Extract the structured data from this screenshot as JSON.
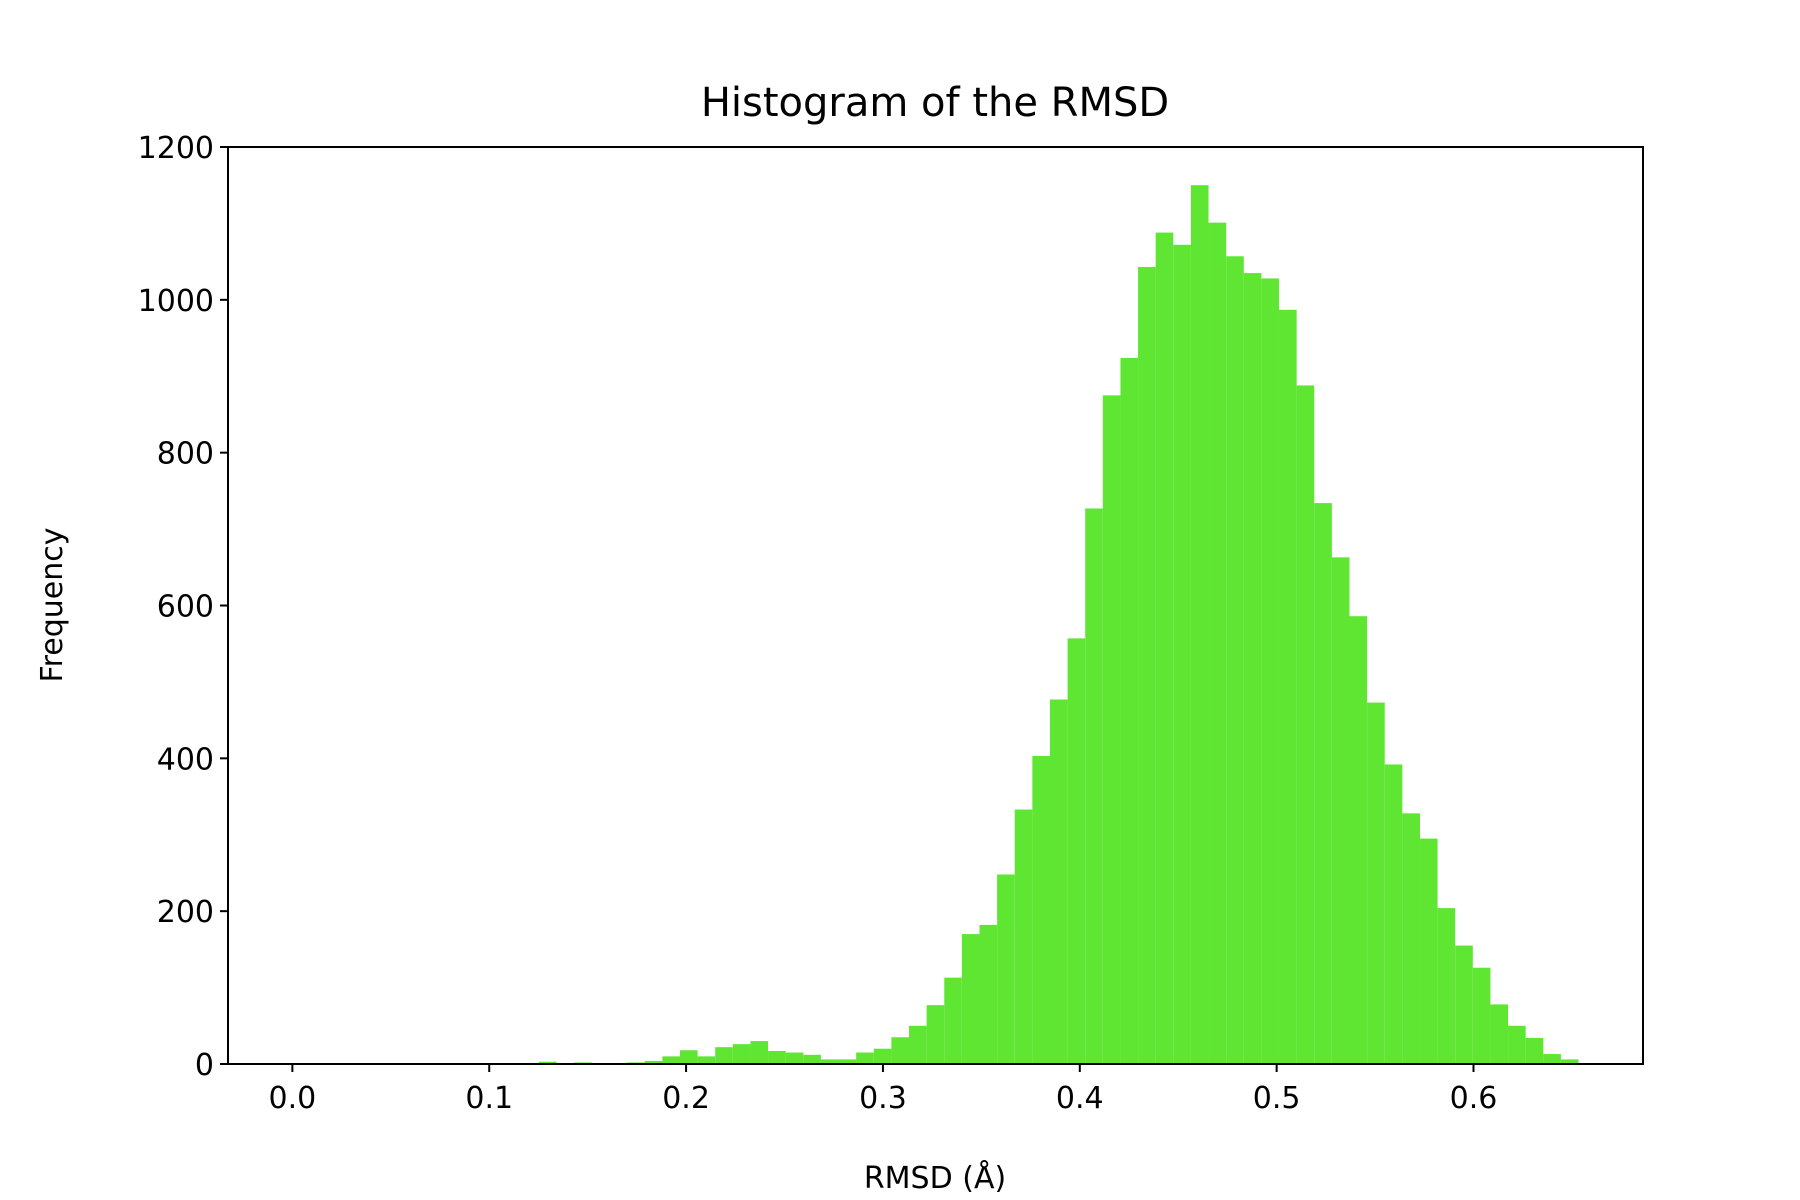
{
  "chart_data": {
    "type": "histogram",
    "title": "Histogram of the RMSD",
    "x_label": "RMSD (Å)",
    "y_label": "Frequency",
    "color": "#5ee632",
    "bins": [
      0,
      0.00895,
      0.0179,
      0.02685,
      0.0358,
      0.04475,
      0.0537,
      0.06265,
      0.0716,
      0.08055,
      0.0895,
      0.09845,
      0.1074,
      0.11635,
      0.1253,
      0.13425,
      0.1432,
      0.15215,
      0.1611,
      0.17005,
      0.179,
      0.18795,
      0.1969,
      0.20585,
      0.2148,
      0.22375,
      0.2327,
      0.24165,
      0.2506,
      0.25955,
      0.2685,
      0.27745,
      0.2864,
      0.29535,
      0.3043,
      0.31325,
      0.3222,
      0.33115,
      0.3401,
      0.34905,
      0.358,
      0.36695,
      0.3759,
      0.38485,
      0.3938,
      0.40275,
      0.4117,
      0.42065,
      0.4296,
      0.43855,
      0.4475,
      0.45645,
      0.4654,
      0.47435,
      0.4833,
      0.49225,
      0.5012,
      0.51015,
      0.5191,
      0.52805,
      0.537,
      0.54595,
      0.5549,
      0.56385,
      0.5728,
      0.58175,
      0.5907,
      0.59965,
      0.6086,
      0.61755,
      0.6265,
      0.63545,
      0.6444,
      0.65335
    ],
    "counts": [
      0,
      0,
      0,
      0,
      0,
      0,
      0,
      0,
      0,
      0,
      0,
      0,
      0,
      0,
      3,
      1,
      2,
      1,
      1,
      2,
      4,
      10,
      18,
      10,
      22,
      26,
      30,
      17,
      15,
      12,
      6,
      6,
      15,
      20,
      35,
      50,
      77,
      113,
      170,
      182,
      248,
      333,
      403,
      477,
      557,
      727,
      875,
      924,
      1043,
      1088,
      1072,
      1150,
      1101,
      1057,
      1035,
      1028,
      987,
      888,
      734,
      663,
      586,
      473,
      392,
      328,
      295,
      204,
      155,
      126,
      78,
      50,
      34,
      13,
      6
    ],
    "xlim": [
      -0.0327,
      0.6861
    ],
    "ylim": [
      0,
      1200
    ],
    "xticks": [
      {
        "value": 0,
        "label": "0.0"
      },
      0.1,
      0.2,
      0.3,
      0.4,
      0.5,
      0.6
    ],
    "yticks": [
      0,
      200,
      400,
      600,
      800,
      1000,
      1200
    ]
  }
}
